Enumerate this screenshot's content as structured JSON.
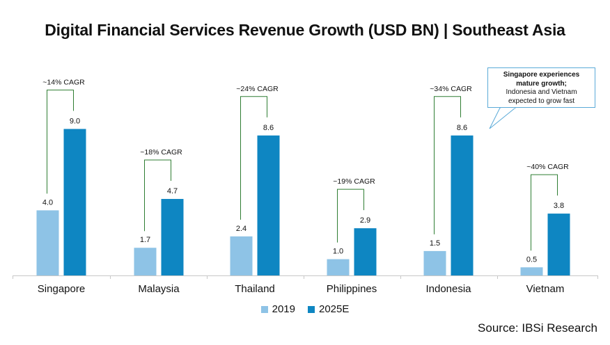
{
  "title": "Digital Financial Services Revenue Growth (USD BN) | Southeast Asia",
  "source": "Source: IBSi Research",
  "callout": {
    "line1": "Singapore experiences",
    "line2": "mature growth;",
    "line3": "Indonesia and Vietnam",
    "line4": "expected to grow fast"
  },
  "colors": {
    "series2019": "#8ec3e6",
    "series2025": "#0e86c2",
    "bracket": "#2e7d32"
  },
  "chart_data": {
    "type": "bar",
    "categories": [
      "Singapore",
      "Malaysia",
      "Thailand",
      "Philippines",
      "Indonesia",
      "Vietnam"
    ],
    "series": [
      {
        "name": "2019",
        "values": [
          4.0,
          1.7,
          2.4,
          1.0,
          1.5,
          0.5
        ],
        "labels": [
          "4.0",
          "1.7",
          "2.4",
          "1.0",
          "1.5",
          "0.5"
        ]
      },
      {
        "name": "2025E",
        "values": [
          9.0,
          4.7,
          8.6,
          2.9,
          8.6,
          3.8
        ],
        "labels": [
          "9.0",
          "4.7",
          "8.6",
          "2.9",
          "8.6",
          "3.8"
        ]
      }
    ],
    "cagr_labels": [
      "~14% CAGR",
      "~18% CAGR",
      "~24% CAGR",
      "~19% CAGR",
      "~34% CAGR",
      "~40% CAGR"
    ],
    "legend_position": "bottom",
    "grid": false
  }
}
